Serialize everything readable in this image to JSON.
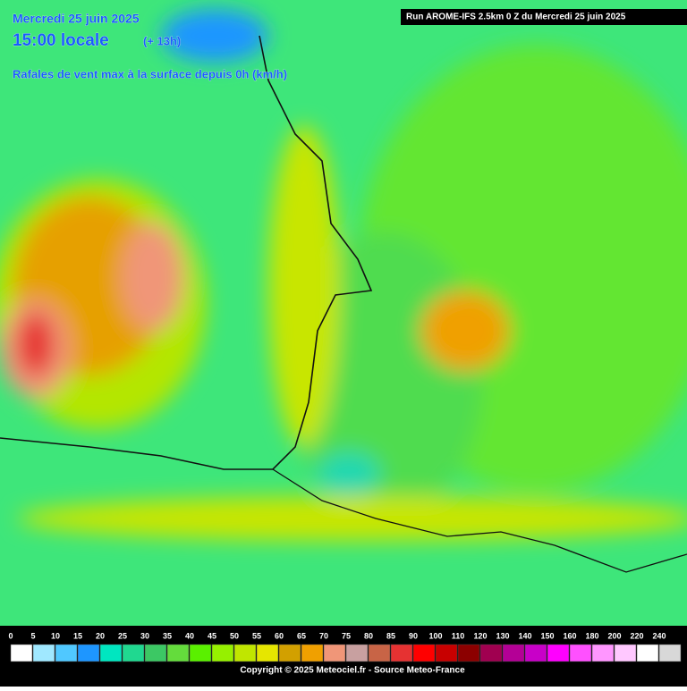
{
  "header": {
    "date": "Mercredi 25 juin 2025",
    "time": "15:00 locale",
    "offset": "(+ 13h)",
    "variable": "Rafales de vent max à la surface depuis 0h (km/h)",
    "run": "Run AROME-IFS 2.5km 0 Z du Mercredi 25 juin 2025"
  },
  "legend": {
    "ticks": [
      0,
      5,
      10,
      15,
      20,
      25,
      30,
      35,
      40,
      45,
      50,
      55,
      60,
      65,
      70,
      75,
      80,
      85,
      90,
      100,
      110,
      120,
      130,
      140,
      150,
      160,
      180,
      200,
      220,
      240
    ],
    "colors": [
      "#ffffff",
      "#a0e8ff",
      "#50c8ff",
      "#1e96ff",
      "#00e6c0",
      "#20d890",
      "#3cc864",
      "#64dc3c",
      "#5af000",
      "#96f000",
      "#c0e600",
      "#e6e600",
      "#d2a000",
      "#f0a000",
      "#f09678",
      "#c8a0a0",
      "#c86446",
      "#e63232",
      "#ff0000",
      "#c80000",
      "#8c0000",
      "#a00050",
      "#b40096",
      "#c800c8",
      "#ff00ff",
      "#ff50ff",
      "#ff96ff",
      "#ffc8ff",
      "#ffffff",
      "#d8d8d8"
    ]
  },
  "footer": {
    "copyright": "Copyright © 2025 Meteociel.fr - Source Meteo-France"
  }
}
